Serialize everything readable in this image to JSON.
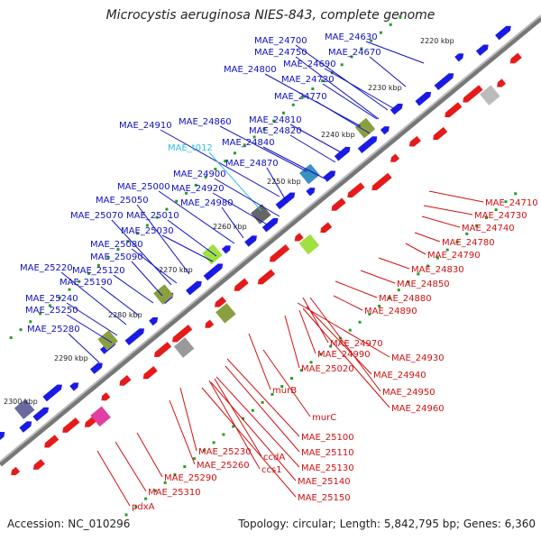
{
  "title": "Microcystis aeruginosa NIES-843, complete genome",
  "footer": {
    "accession": "Accession: NC_010296",
    "summary": "Topology: circular; Length: 5,842,795 bp; Genes: 6,360"
  },
  "colors": {
    "forward_gene": "#1a1ae6",
    "reverse_gene": "#e61a1a",
    "trna": "#30c0e0",
    "backbone": "#888888",
    "tick_dot": "#2a9a2a"
  },
  "kbp_ticks": [
    "2220 kbp",
    "2230 kbp",
    "2240 kbp",
    "2250 kbp",
    "2260 kbp",
    "2270 kbp",
    "2280 kbp",
    "2290 kbp",
    "2300 kbp"
  ],
  "forward_labels": [
    "MAE_24630",
    "MAE_24700",
    "MAE_24670",
    "MAE_24750",
    "MAE_24690",
    "MAE_24800",
    "MAE_24720",
    "MAE_24770",
    "MAE_24810",
    "MAE_24860",
    "MAE_24910",
    "MAE_24820",
    "MAE_24840",
    "MAE_t012",
    "MAE_24870",
    "MAE_24900",
    "MAE_24920",
    "MAE_25000",
    "MAE_24980",
    "MAE_25050",
    "MAE_25010",
    "MAE_25070",
    "MAE_25030",
    "MAE_25080",
    "MAE_25090",
    "MAE_25220",
    "MAE_25120",
    "MAE_25190",
    "MAE_25240",
    "MAE_25250",
    "MAE_25280"
  ],
  "reverse_labels": [
    "MAE_24710",
    "MAE_24730",
    "MAE_24740",
    "MAE_24780",
    "MAE_24790",
    "MAE_24830",
    "MAE_24850",
    "MAE_24880",
    "MAE_24890",
    "MAE_24970",
    "MAE_24990",
    "MAE_24930",
    "MAE_25020",
    "MAE_24940",
    "MAE_24950",
    "MAE_24960",
    "murB",
    "murC",
    "MAE_25100",
    "MAE_25110",
    "MAE_25230",
    "ccdA",
    "MAE_25130",
    "MAE_25260",
    "ccs1",
    "MAE_25140",
    "MAE_25290",
    "MAE_25150",
    "MAE_25310",
    "pdxA"
  ]
}
